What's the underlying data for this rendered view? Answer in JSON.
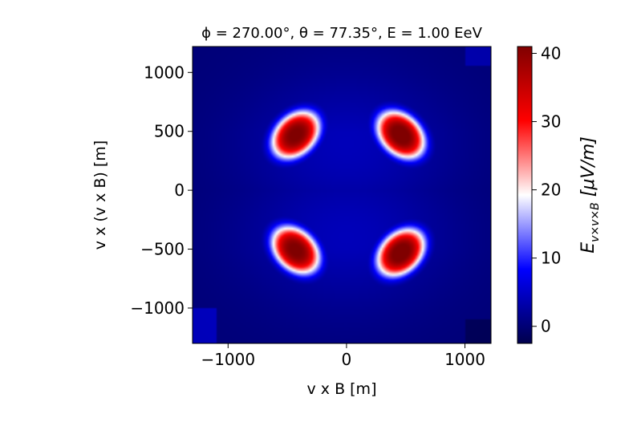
{
  "chart_data": {
    "type": "heatmap",
    "title": "ϕ  = 270.00°, θ  = 77.35°, E = 1.00 EeV",
    "xlabel": "v x B [m]",
    "ylabel": "v x (v x B) [m]",
    "xlim": [
      -1300,
      1220
    ],
    "ylim": [
      -1300,
      1220
    ],
    "x_ticks": [
      -1000,
      0,
      1000
    ],
    "x_tick_labels": [
      "−1000",
      "0",
      "1000"
    ],
    "y_ticks": [
      1000,
      500,
      0,
      -500,
      -1000
    ],
    "y_tick_labels": [
      "1000",
      "500",
      "0",
      "−500",
      "−1000"
    ],
    "colorbar": {
      "label": "Eᵥₓᵥₓʙ [μV/m]",
      "label_main": "E",
      "label_sub": "v×v×B",
      "label_unit": " [μV/m]",
      "range": [
        -2.5,
        41
      ],
      "ticks": [
        0,
        10,
        20,
        30,
        40
      ],
      "tick_labels": [
        "0",
        "10",
        "20",
        "30",
        "40"
      ],
      "colormap": "seismic"
    },
    "lobes": [
      {
        "x": -430,
        "y": 470,
        "peak": 40
      },
      {
        "x": 460,
        "y": 470,
        "peak": 41
      },
      {
        "x": -430,
        "y": -510,
        "peak": 40
      },
      {
        "x": 460,
        "y": -530,
        "peak": 41
      }
    ],
    "background_value": 0,
    "colors": {
      "low": "#00004c",
      "mid_low": "#0000ff",
      "mid": "#ffffff",
      "mid_high": "#ff0000",
      "high": "#800000"
    }
  }
}
